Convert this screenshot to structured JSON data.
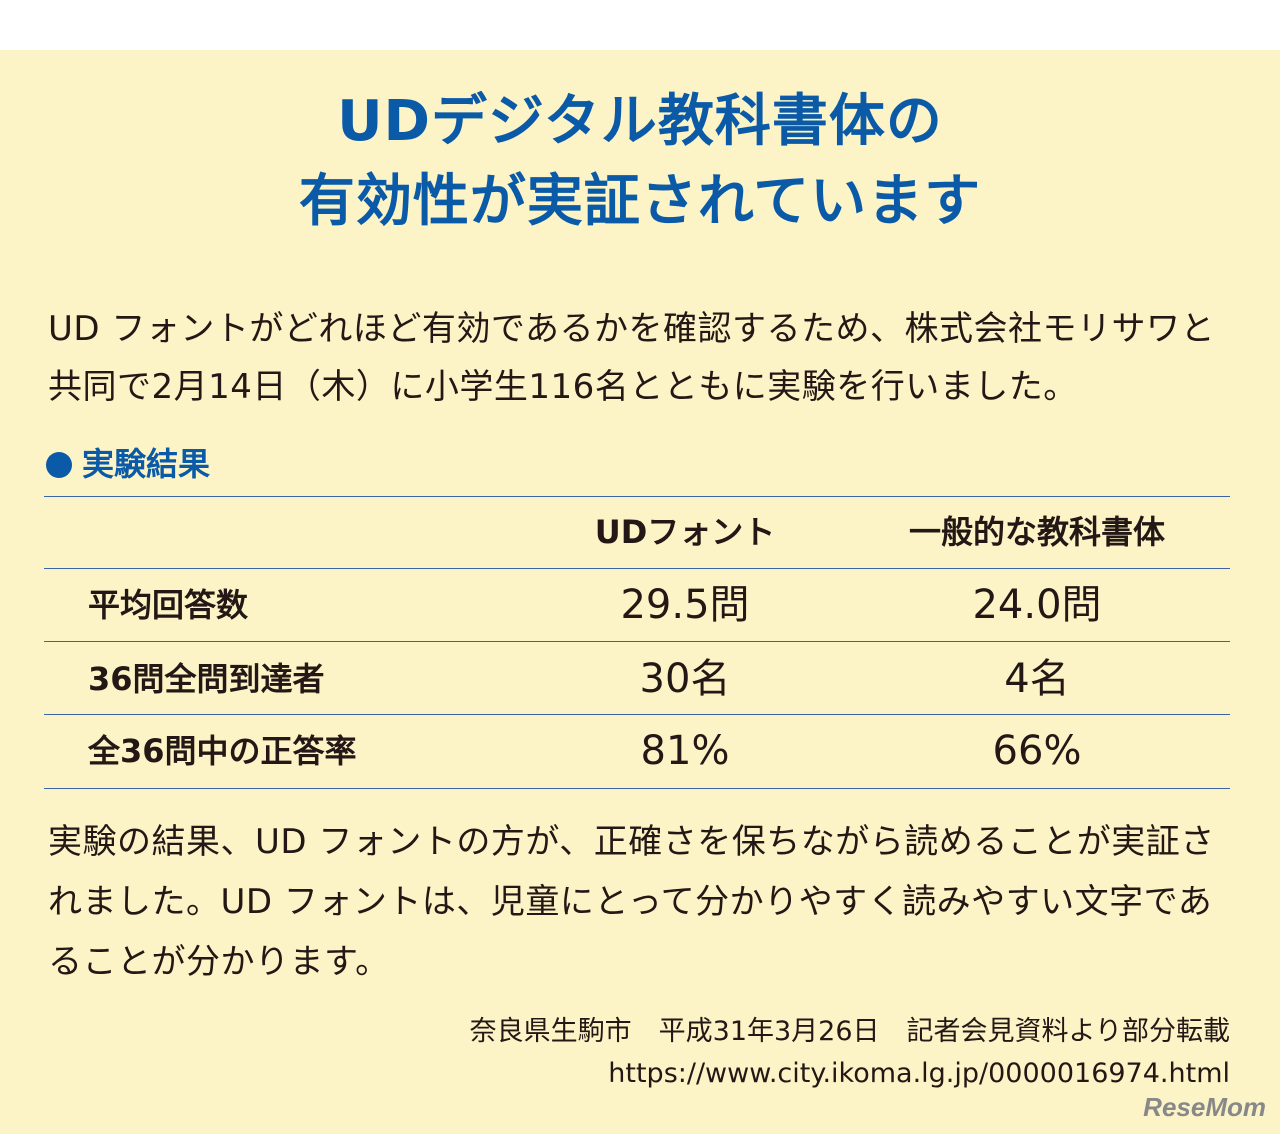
{
  "title": {
    "line1": "UDデジタル教科書体の",
    "line2": "有効性が実証されています"
  },
  "intro": "UD フォントがどれほど有効であるかを確認するため、株式会社モリサワと共同で2月14日（木）に小学生116名とともに実験を行いました。",
  "results": {
    "heading": "実験結果",
    "columns": [
      "UDフォント",
      "一般的な教科書体"
    ],
    "rows": [
      {
        "label": "平均回答数",
        "ud": "29.5問",
        "general": "24.0問"
      },
      {
        "label": "36問全問到達者",
        "ud": "30名",
        "general": "4名"
      },
      {
        "label": "全36問中の正答率",
        "ud": "81%",
        "general": "66%"
      }
    ]
  },
  "conclusion": "実験の結果、UD フォントの方が、正確さを保ちながら読めることが実証されました。UD フォントは、児童にとって分かりやすく読みやすい文字であることが分かります。",
  "source": {
    "line1": "奈良県生駒市　平成31年3月26日　記者会見資料より部分転載",
    "url": "https://www.city.ikoma.lg.jp/0000016974.html"
  },
  "watermark": "ReseMom",
  "colors": {
    "background": "#fcf4c6",
    "accent": "#0a5aa8"
  }
}
